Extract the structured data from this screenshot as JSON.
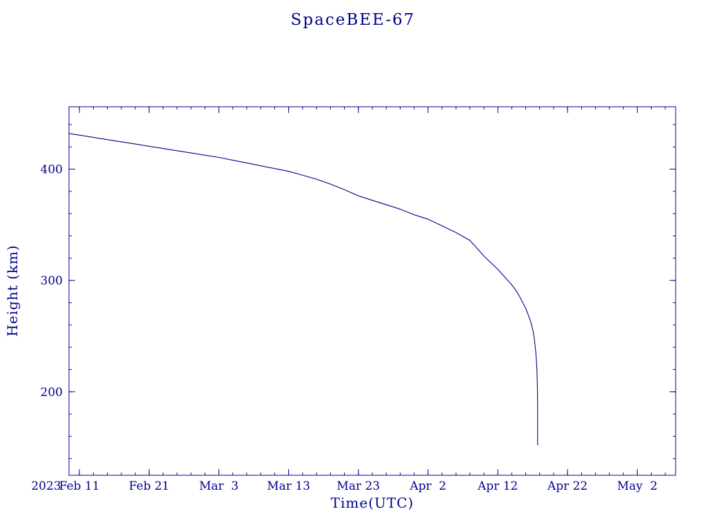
{
  "page": {
    "background": "#ffffff"
  },
  "chart_data": {
    "type": "line",
    "title": "SpaceBEE-67",
    "xlabel": "Time(UTC)",
    "ylabel": "Height (km)",
    "x_axis_year_label": "2023",
    "axis_color": "#00008B",
    "line_color": "#00008B",
    "grid": false,
    "legend": "none",
    "x_unit": "days since 2023-02-11 (UTC)",
    "xlim": [
      -1.5,
      85.5
    ],
    "ylim": [
      125,
      456
    ],
    "x_minor_step": 2,
    "y_minor_step": 20,
    "x_ticks": [
      {
        "pos": 0,
        "label": "Feb 11"
      },
      {
        "pos": 10,
        "label": "Feb 21"
      },
      {
        "pos": 20,
        "label": "Mar  3"
      },
      {
        "pos": 30,
        "label": "Mar 13"
      },
      {
        "pos": 40,
        "label": "Mar 23"
      },
      {
        "pos": 50,
        "label": "Apr  2"
      },
      {
        "pos": 60,
        "label": "Apr 12"
      },
      {
        "pos": 70,
        "label": "Apr 22"
      },
      {
        "pos": 80,
        "label": "May  2"
      }
    ],
    "y_ticks": [
      {
        "pos": 200,
        "label": "200"
      },
      {
        "pos": 300,
        "label": "300"
      },
      {
        "pos": 400,
        "label": "400"
      }
    ],
    "series": [
      {
        "name": "SpaceBEE-67 orbital height",
        "x": [
          -1.5,
          0,
          2,
          4,
          6,
          8,
          10,
          12,
          14,
          16,
          18,
          20,
          22,
          24,
          26,
          28,
          30,
          32,
          34,
          36,
          38,
          40,
          42,
          44,
          46,
          48,
          50,
          52,
          54,
          56,
          58,
          60,
          61,
          62,
          62.5,
          63,
          63.5,
          64,
          64.3,
          64.6,
          64.8,
          65,
          65.1,
          65.2,
          65.3,
          65.4,
          65.45,
          65.5,
          65.55,
          65.6,
          65.62,
          65.64,
          65.66,
          65.68,
          65.7,
          65.71
        ],
        "y": [
          432,
          430.5,
          428.5,
          426.5,
          424.5,
          422.5,
          420.5,
          418.5,
          416.5,
          414.5,
          412.5,
          410.5,
          408,
          405.5,
          403,
          400.5,
          398,
          394.5,
          391,
          386.5,
          381.5,
          376,
          372,
          368,
          364,
          359,
          355,
          349,
          343,
          336,
          322,
          310,
          303,
          296,
          292,
          287,
          281,
          275,
          270,
          265,
          261,
          256,
          253,
          249,
          244,
          238,
          235,
          231,
          226,
          220,
          217,
          213,
          208,
          201,
          190,
          152
        ]
      }
    ]
  }
}
